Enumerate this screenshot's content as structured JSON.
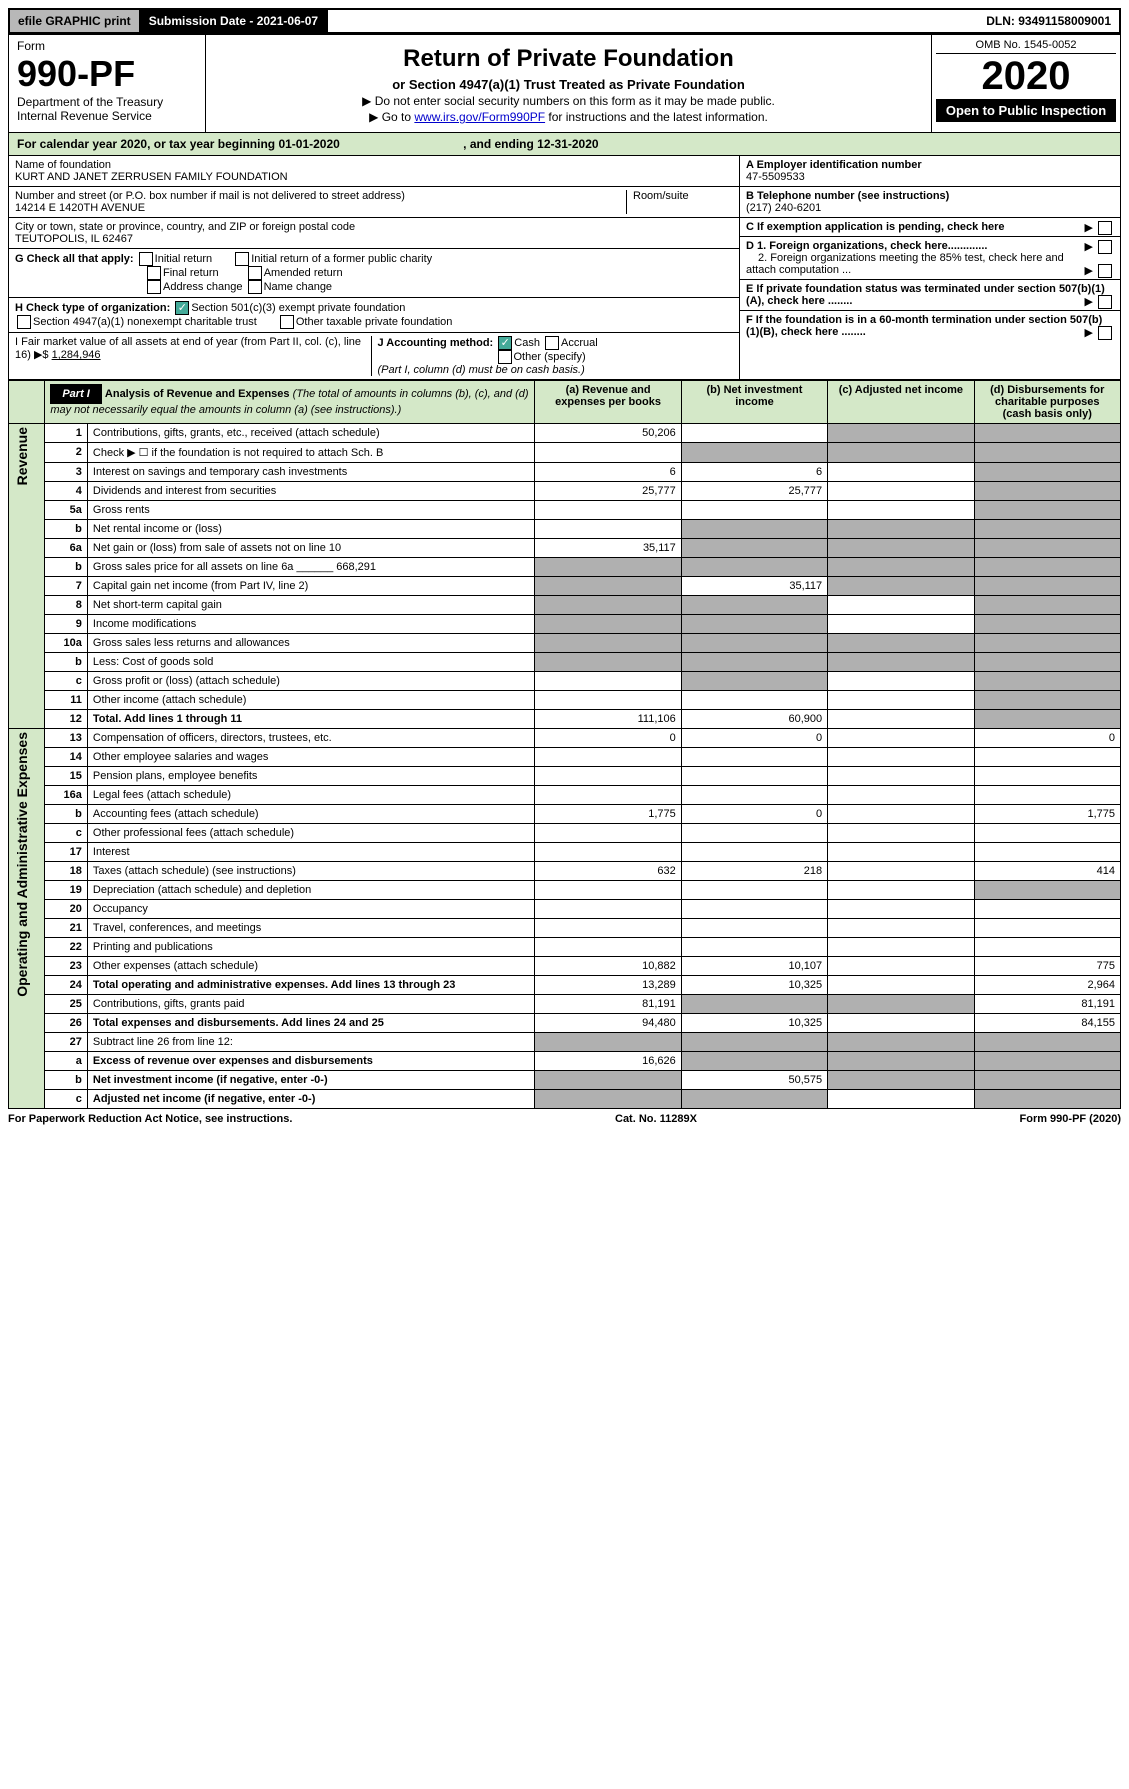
{
  "top": {
    "efile": "efile GRAPHIC print",
    "submission": "Submission Date - 2021-06-07",
    "dln": "DLN: 93491158009001"
  },
  "header": {
    "form_label": "Form",
    "form_number": "990-PF",
    "dept": "Department of the Treasury",
    "irs": "Internal Revenue Service",
    "title": "Return of Private Foundation",
    "subtitle": "or Section 4947(a)(1) Trust Treated as Private Foundation",
    "note1": "▶ Do not enter social security numbers on this form as it may be made public.",
    "note2_pre": "▶ Go to ",
    "note2_link": "www.irs.gov/Form990PF",
    "note2_post": " for instructions and the latest information.",
    "omb": "OMB No. 1545-0052",
    "year": "2020",
    "open": "Open to Public Inspection"
  },
  "calendar": {
    "text": "For calendar year 2020, or tax year beginning 01-01-2020",
    "ending": ", and ending 12-31-2020"
  },
  "foundation": {
    "name_label": "Name of foundation",
    "name": "KURT AND JANET ZERRUSEN FAMILY FOUNDATION",
    "addr_label": "Number and street (or P.O. box number if mail is not delivered to street address)",
    "addr": "14214 E 1420TH AVENUE",
    "room_label": "Room/suite",
    "city_label": "City or town, state or province, country, and ZIP or foreign postal code",
    "city": "TEUTOPOLIS, IL  62467",
    "ein_label": "A Employer identification number",
    "ein": "47-5509533",
    "phone_label": "B Telephone number (see instructions)",
    "phone": "(217) 240-6201",
    "c_label": "C If exemption application is pending, check here",
    "d1": "D 1. Foreign organizations, check here.............",
    "d2": "2. Foreign organizations meeting the 85% test, check here and attach computation ...",
    "e_label": "E If private foundation status was terminated under section 507(b)(1)(A), check here ........",
    "f_label": "F If the foundation is in a 60-month termination under section 507(b)(1)(B), check here ........"
  },
  "checks": {
    "g_label": "G Check all that apply:",
    "initial": "Initial return",
    "initial_former": "Initial return of a former public charity",
    "final": "Final return",
    "amended": "Amended return",
    "addr_change": "Address change",
    "name_change": "Name change",
    "h_label": "H Check type of organization:",
    "h_501c3": "Section 501(c)(3) exempt private foundation",
    "h_4947": "Section 4947(a)(1) nonexempt charitable trust",
    "h_other": "Other taxable private foundation",
    "i_label": "I Fair market value of all assets at end of year (from Part II, col. (c), line 16) ▶$",
    "i_value": "1,284,946",
    "j_label": "J Accounting method:",
    "j_cash": "Cash",
    "j_accrual": "Accrual",
    "j_other": "Other (specify)",
    "j_note": "(Part I, column (d) must be on cash basis.)"
  },
  "part1": {
    "label": "Part I",
    "title": "Analysis of Revenue and Expenses",
    "subtitle": "(The total of amounts in columns (b), (c), and (d) may not necessarily equal the amounts in column (a) (see instructions).)",
    "col_a": "(a) Revenue and expenses per books",
    "col_b": "(b) Net investment income",
    "col_c": "(c) Adjusted net income",
    "col_d": "(d) Disbursements for charitable purposes (cash basis only)"
  },
  "sides": {
    "revenue": "Revenue",
    "expenses": "Operating and Administrative Expenses"
  },
  "rows": [
    {
      "n": "1",
      "desc": "Contributions, gifts, grants, etc., received (attach schedule)",
      "a": "50,206",
      "b": "",
      "c": "shaded",
      "d": "shaded"
    },
    {
      "n": "2",
      "desc": "Check ▶ ☐ if the foundation is not required to attach Sch. B",
      "a": "",
      "b": "shaded",
      "c": "shaded",
      "d": "shaded"
    },
    {
      "n": "3",
      "desc": "Interest on savings and temporary cash investments",
      "a": "6",
      "b": "6",
      "c": "",
      "d": "shaded"
    },
    {
      "n": "4",
      "desc": "Dividends and interest from securities",
      "a": "25,777",
      "b": "25,777",
      "c": "",
      "d": "shaded"
    },
    {
      "n": "5a",
      "desc": "Gross rents",
      "a": "",
      "b": "",
      "c": "",
      "d": "shaded"
    },
    {
      "n": "b",
      "desc": "Net rental income or (loss)",
      "a": "",
      "b": "shaded",
      "c": "shaded",
      "d": "shaded"
    },
    {
      "n": "6a",
      "desc": "Net gain or (loss) from sale of assets not on line 10",
      "a": "35,117",
      "b": "shaded",
      "c": "shaded",
      "d": "shaded"
    },
    {
      "n": "b",
      "desc": "Gross sales price for all assets on line 6a ______ 668,291",
      "a": "shaded",
      "b": "shaded",
      "c": "shaded",
      "d": "shaded"
    },
    {
      "n": "7",
      "desc": "Capital gain net income (from Part IV, line 2)",
      "a": "shaded",
      "b": "35,117",
      "c": "shaded",
      "d": "shaded"
    },
    {
      "n": "8",
      "desc": "Net short-term capital gain",
      "a": "shaded",
      "b": "shaded",
      "c": "",
      "d": "shaded"
    },
    {
      "n": "9",
      "desc": "Income modifications",
      "a": "shaded",
      "b": "shaded",
      "c": "",
      "d": "shaded"
    },
    {
      "n": "10a",
      "desc": "Gross sales less returns and allowances",
      "a": "shaded",
      "b": "shaded",
      "c": "shaded",
      "d": "shaded"
    },
    {
      "n": "b",
      "desc": "Less: Cost of goods sold",
      "a": "shaded",
      "b": "shaded",
      "c": "shaded",
      "d": "shaded"
    },
    {
      "n": "c",
      "desc": "Gross profit or (loss) (attach schedule)",
      "a": "",
      "b": "shaded",
      "c": "",
      "d": "shaded"
    },
    {
      "n": "11",
      "desc": "Other income (attach schedule)",
      "a": "",
      "b": "",
      "c": "",
      "d": "shaded"
    },
    {
      "n": "12",
      "desc": "Total. Add lines 1 through 11",
      "a": "111,106",
      "b": "60,900",
      "c": "",
      "d": "shaded",
      "bold": true
    },
    {
      "n": "13",
      "desc": "Compensation of officers, directors, trustees, etc.",
      "a": "0",
      "b": "0",
      "c": "",
      "d": "0"
    },
    {
      "n": "14",
      "desc": "Other employee salaries and wages",
      "a": "",
      "b": "",
      "c": "",
      "d": ""
    },
    {
      "n": "15",
      "desc": "Pension plans, employee benefits",
      "a": "",
      "b": "",
      "c": "",
      "d": ""
    },
    {
      "n": "16a",
      "desc": "Legal fees (attach schedule)",
      "a": "",
      "b": "",
      "c": "",
      "d": ""
    },
    {
      "n": "b",
      "desc": "Accounting fees (attach schedule)",
      "a": "1,775",
      "b": "0",
      "c": "",
      "d": "1,775"
    },
    {
      "n": "c",
      "desc": "Other professional fees (attach schedule)",
      "a": "",
      "b": "",
      "c": "",
      "d": ""
    },
    {
      "n": "17",
      "desc": "Interest",
      "a": "",
      "b": "",
      "c": "",
      "d": ""
    },
    {
      "n": "18",
      "desc": "Taxes (attach schedule) (see instructions)",
      "a": "632",
      "b": "218",
      "c": "",
      "d": "414"
    },
    {
      "n": "19",
      "desc": "Depreciation (attach schedule) and depletion",
      "a": "",
      "b": "",
      "c": "",
      "d": "shaded"
    },
    {
      "n": "20",
      "desc": "Occupancy",
      "a": "",
      "b": "",
      "c": "",
      "d": ""
    },
    {
      "n": "21",
      "desc": "Travel, conferences, and meetings",
      "a": "",
      "b": "",
      "c": "",
      "d": ""
    },
    {
      "n": "22",
      "desc": "Printing and publications",
      "a": "",
      "b": "",
      "c": "",
      "d": ""
    },
    {
      "n": "23",
      "desc": "Other expenses (attach schedule)",
      "a": "10,882",
      "b": "10,107",
      "c": "",
      "d": "775"
    },
    {
      "n": "24",
      "desc": "Total operating and administrative expenses. Add lines 13 through 23",
      "a": "13,289",
      "b": "10,325",
      "c": "",
      "d": "2,964",
      "bold": true
    },
    {
      "n": "25",
      "desc": "Contributions, gifts, grants paid",
      "a": "81,191",
      "b": "shaded",
      "c": "shaded",
      "d": "81,191"
    },
    {
      "n": "26",
      "desc": "Total expenses and disbursements. Add lines 24 and 25",
      "a": "94,480",
      "b": "10,325",
      "c": "",
      "d": "84,155",
      "bold": true
    },
    {
      "n": "27",
      "desc": "Subtract line 26 from line 12:",
      "a": "shaded",
      "b": "shaded",
      "c": "shaded",
      "d": "shaded"
    },
    {
      "n": "a",
      "desc": "Excess of revenue over expenses and disbursements",
      "a": "16,626",
      "b": "shaded",
      "c": "shaded",
      "d": "shaded",
      "bold": true
    },
    {
      "n": "b",
      "desc": "Net investment income (if negative, enter -0-)",
      "a": "shaded",
      "b": "50,575",
      "c": "shaded",
      "d": "shaded",
      "bold": true
    },
    {
      "n": "c",
      "desc": "Adjusted net income (if negative, enter -0-)",
      "a": "shaded",
      "b": "shaded",
      "c": "",
      "d": "shaded",
      "bold": true
    }
  ],
  "footer": {
    "left": "For Paperwork Reduction Act Notice, see instructions.",
    "center": "Cat. No. 11289X",
    "right": "Form 990-PF (2020)"
  }
}
